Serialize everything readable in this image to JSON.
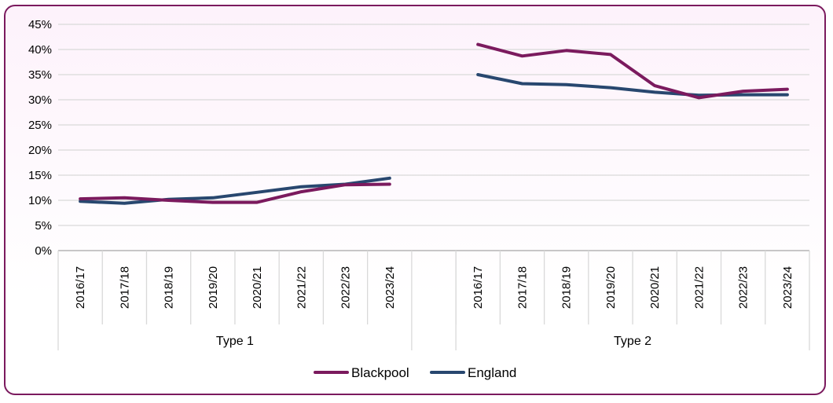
{
  "chart_data": {
    "type": "line",
    "title": "",
    "xlabel": "",
    "ylabel": "",
    "ylim": [
      0,
      45
    ],
    "yticks": [
      "0%",
      "5%",
      "10%",
      "15%",
      "20%",
      "25%",
      "30%",
      "35%",
      "40%",
      "45%"
    ],
    "grid": true,
    "legend_position": "bottom",
    "groups": [
      {
        "name": "Type 1",
        "categories": [
          "2016/17",
          "2017/18",
          "2018/19",
          "2019/20",
          "2020/21",
          "2021/22",
          "2022/23",
          "2023/24"
        ]
      },
      {
        "name": "Type 2",
        "categories": [
          "2016/17",
          "2017/18",
          "2018/19",
          "2019/20",
          "2020/21",
          "2021/22",
          "2022/23",
          "2023/24"
        ]
      }
    ],
    "series": [
      {
        "name": "Blackpool",
        "color": "#7b1a5e",
        "values": [
          [
            10.3,
            10.5,
            10.0,
            9.6,
            9.6,
            11.7,
            13.1,
            13.2
          ],
          [
            41.0,
            38.7,
            39.8,
            39.0,
            32.8,
            30.4,
            31.7,
            32.1
          ]
        ]
      },
      {
        "name": "England",
        "color": "#28476f",
        "values": [
          [
            9.8,
            9.4,
            10.2,
            10.5,
            11.6,
            12.7,
            13.2,
            14.4
          ],
          [
            35.0,
            33.2,
            33.0,
            32.4,
            31.5,
            30.9,
            31.0,
            31.0
          ]
        ]
      }
    ]
  }
}
